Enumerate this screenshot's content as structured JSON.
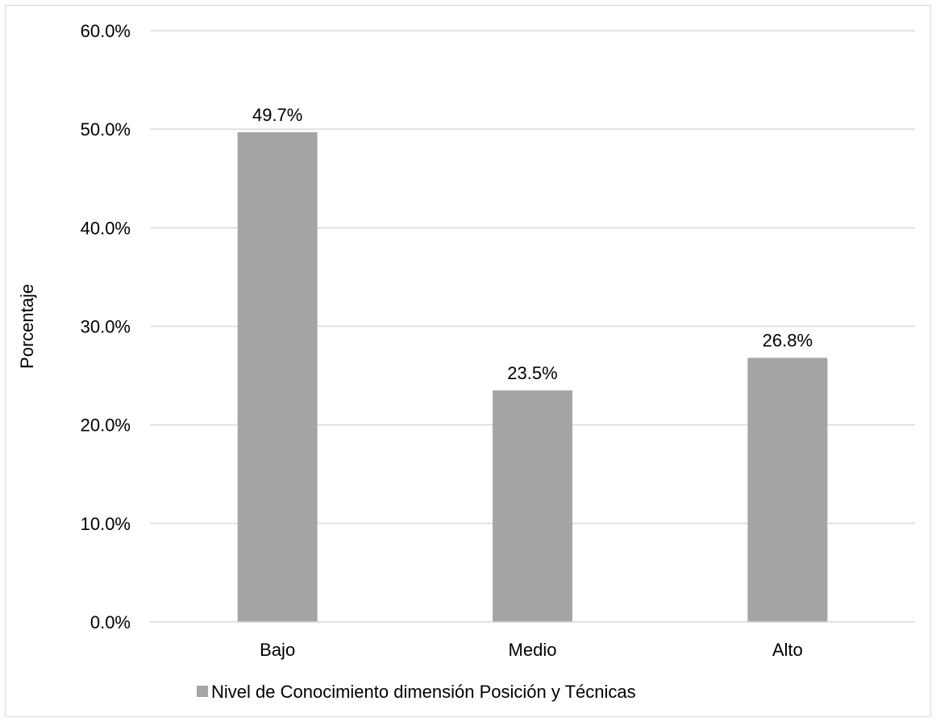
{
  "chart_data": {
    "type": "bar",
    "categories": [
      "Bajo",
      "Medio",
      "Alto"
    ],
    "series": [
      {
        "name": "Nivel de Conocimiento dimensión Posición y Técnicas",
        "values": [
          49.7,
          23.5,
          26.8
        ],
        "data_labels": [
          "49.7%",
          "23.5%",
          "26.8%"
        ],
        "color": "#a5a5a5"
      }
    ],
    "title": "",
    "xlabel": "",
    "ylabel": "Porcentaje",
    "ylim": [
      0,
      60
    ],
    "y_ticks": [
      0,
      10,
      20,
      30,
      40,
      50,
      60
    ],
    "y_tick_labels": [
      "0.0%",
      "10.0%",
      "20.0%",
      "30.0%",
      "40.0%",
      "50.0%",
      "60.0%"
    ],
    "grid": true,
    "grid_color": "#d9d9d9",
    "legend_position": "bottom"
  }
}
